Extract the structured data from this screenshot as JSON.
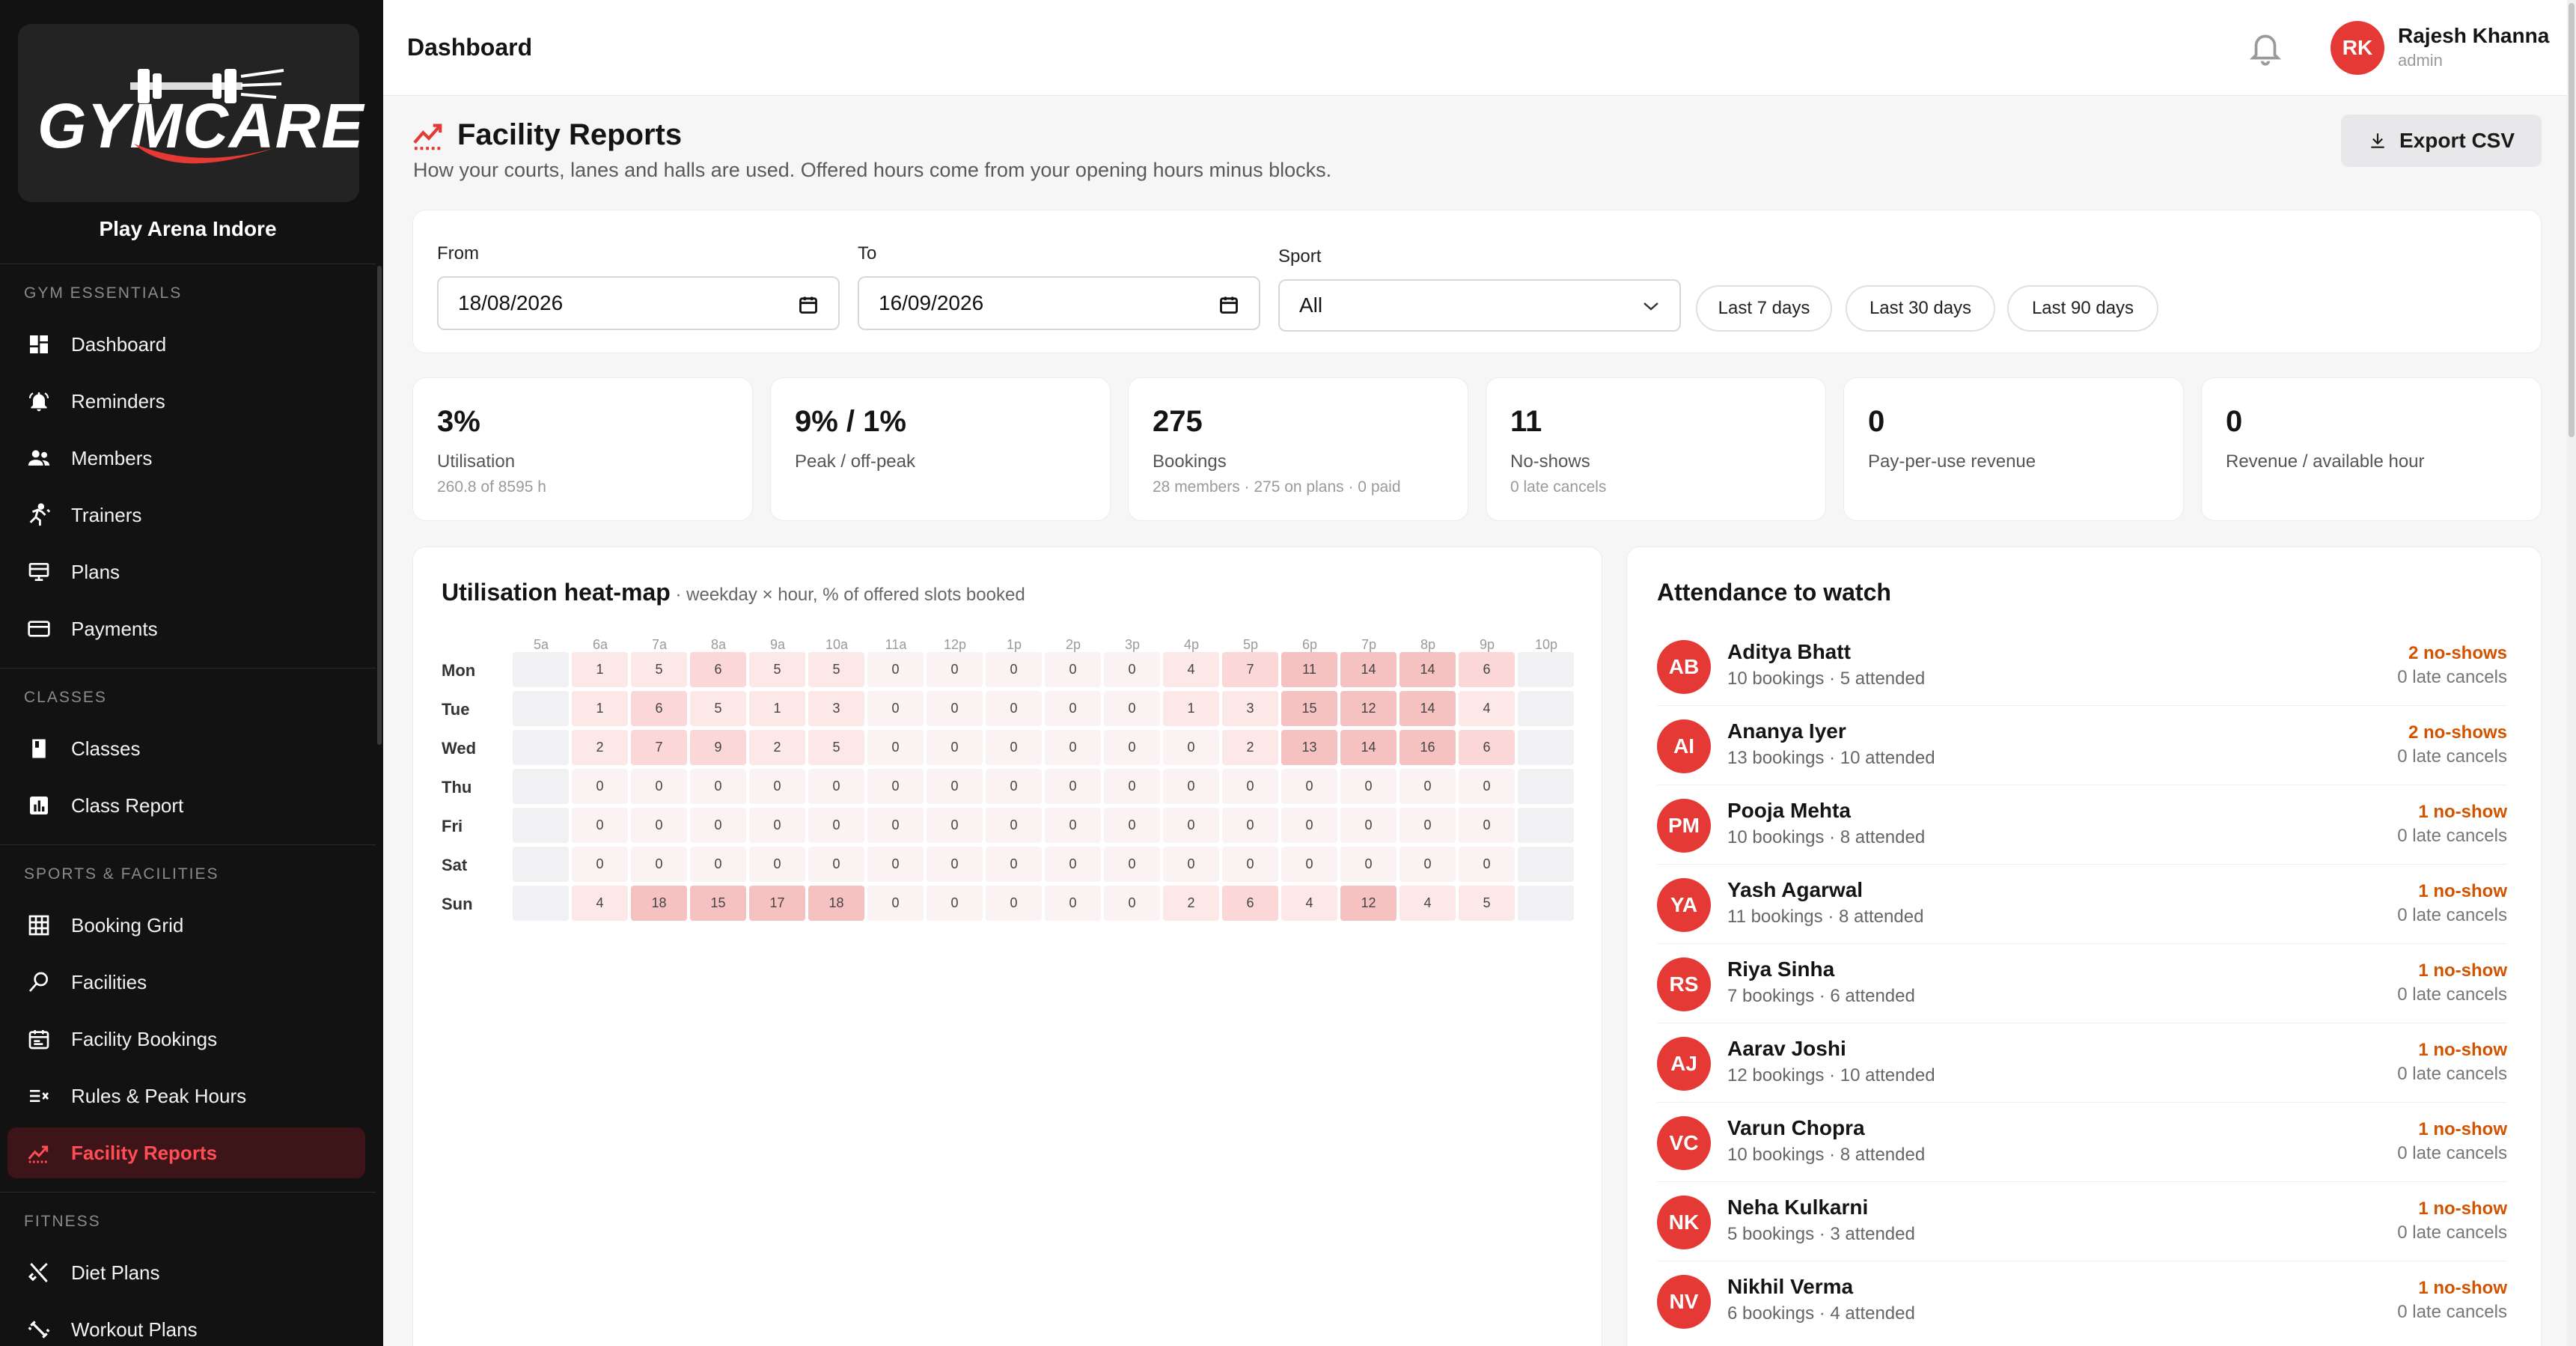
{
  "brand": {
    "logo_text": "GYMCARE",
    "org_name": "Play Arena Indore"
  },
  "sidebar": {
    "sections": [
      {
        "title": "GYM ESSENTIALS",
        "items": [
          {
            "label": "Dashboard",
            "icon": "dashboard-icon"
          },
          {
            "label": "Reminders",
            "icon": "bell-ring-icon"
          },
          {
            "label": "Members",
            "icon": "members-icon"
          },
          {
            "label": "Trainers",
            "icon": "trainer-icon"
          },
          {
            "label": "Plans",
            "icon": "plans-icon"
          },
          {
            "label": "Payments",
            "icon": "card-icon"
          }
        ]
      },
      {
        "title": "CLASSES",
        "items": [
          {
            "label": "Classes",
            "icon": "book-icon"
          },
          {
            "label": "Class Report",
            "icon": "bar-chart-icon"
          }
        ]
      },
      {
        "title": "SPORTS & FACILITIES",
        "items": [
          {
            "label": "Booking Grid",
            "icon": "grid-icon"
          },
          {
            "label": "Facilities",
            "icon": "facility-icon"
          },
          {
            "label": "Facility Bookings",
            "icon": "calendar-icon"
          },
          {
            "label": "Rules & Peak Hours",
            "icon": "rules-icon"
          },
          {
            "label": "Facility Reports",
            "icon": "trend-icon",
            "active": true
          }
        ]
      },
      {
        "title": "FITNESS",
        "items": [
          {
            "label": "Diet Plans",
            "icon": "fork-knife-icon"
          },
          {
            "label": "Workout Plans",
            "icon": "dumbbell-icon"
          }
        ]
      }
    ]
  },
  "topbar": {
    "title": "Dashboard",
    "user": {
      "initials": "RK",
      "name": "Rajesh Khanna",
      "role": "admin"
    }
  },
  "page": {
    "title": "Facility Reports",
    "subtitle": "How your courts, lanes and halls are used. Offered hours come from your opening hours minus blocks.",
    "export_label": "Export CSV"
  },
  "filters": {
    "from_label": "From",
    "from_value": "18/08/2026",
    "to_label": "To",
    "to_value": "16/09/2026",
    "sport_label": "Sport",
    "sport_value": "All",
    "chips": [
      "Last 7 days",
      "Last 30 days",
      "Last 90 days"
    ]
  },
  "kpis": [
    {
      "value": "3%",
      "label": "Utilisation",
      "sub": "260.8 of 8595 h"
    },
    {
      "value": "9% / 1%",
      "label": "Peak / off-peak",
      "sub": ""
    },
    {
      "value": "275",
      "label": "Bookings",
      "sub": "28 members · 275 on plans · 0 paid"
    },
    {
      "value": "11",
      "label": "No-shows",
      "sub": "0 late cancels"
    },
    {
      "value": "0",
      "label": "Pay-per-use revenue",
      "sub": ""
    },
    {
      "value": "0",
      "label": "Revenue / available hour",
      "sub": ""
    }
  ],
  "heatmap": {
    "title": "Utilisation heat-map",
    "subtitle": " · weekday × hour, % of offered slots booked",
    "hours": [
      "5a",
      "6a",
      "7a",
      "8a",
      "9a",
      "10a",
      "11a",
      "12p",
      "1p",
      "2p",
      "3p",
      "4p",
      "5p",
      "6p",
      "7p",
      "8p",
      "9p",
      "10p"
    ],
    "days": [
      "Mon",
      "Tue",
      "Wed",
      "Thu",
      "Fri",
      "Sat",
      "Sun"
    ],
    "values": [
      [
        null,
        1,
        5,
        6,
        5,
        5,
        0,
        0,
        0,
        0,
        0,
        4,
        7,
        11,
        14,
        14,
        6,
        null
      ],
      [
        null,
        1,
        6,
        5,
        1,
        3,
        0,
        0,
        0,
        0,
        0,
        1,
        3,
        15,
        12,
        14,
        4,
        null
      ],
      [
        null,
        2,
        7,
        9,
        2,
        5,
        0,
        0,
        0,
        0,
        0,
        0,
        2,
        13,
        14,
        16,
        6,
        null
      ],
      [
        null,
        0,
        0,
        0,
        0,
        0,
        0,
        0,
        0,
        0,
        0,
        0,
        0,
        0,
        0,
        0,
        0,
        null
      ],
      [
        null,
        0,
        0,
        0,
        0,
        0,
        0,
        0,
        0,
        0,
        0,
        0,
        0,
        0,
        0,
        0,
        0,
        null
      ],
      [
        null,
        0,
        0,
        0,
        0,
        0,
        0,
        0,
        0,
        0,
        0,
        0,
        0,
        0,
        0,
        0,
        0,
        null
      ],
      [
        null,
        4,
        18,
        15,
        17,
        18,
        0,
        0,
        0,
        0,
        0,
        2,
        6,
        4,
        12,
        4,
        5,
        null
      ]
    ],
    "colors": {
      "empty": "#f1f1f3",
      "zero": "#fbf3f3",
      "low": "#fde8e8",
      "mid": "#fbd7d7",
      "high": "#f5c1c1"
    }
  },
  "attendance": {
    "title": "Attendance to watch",
    "people": [
      {
        "initials": "AB",
        "name": "Aditya Bhatt",
        "stats": "10 bookings · 5 attended",
        "noshow": "2 no-shows",
        "late": "0 late cancels"
      },
      {
        "initials": "AI",
        "name": "Ananya Iyer",
        "stats": "13 bookings · 10 attended",
        "noshow": "2 no-shows",
        "late": "0 late cancels"
      },
      {
        "initials": "PM",
        "name": "Pooja Mehta",
        "stats": "10 bookings · 8 attended",
        "noshow": "1 no-show",
        "late": "0 late cancels"
      },
      {
        "initials": "YA",
        "name": "Yash Agarwal",
        "stats": "11 bookings · 8 attended",
        "noshow": "1 no-show",
        "late": "0 late cancels"
      },
      {
        "initials": "RS",
        "name": "Riya Sinha",
        "stats": "7 bookings · 6 attended",
        "noshow": "1 no-show",
        "late": "0 late cancels"
      },
      {
        "initials": "AJ",
        "name": "Aarav Joshi",
        "stats": "12 bookings · 10 attended",
        "noshow": "1 no-show",
        "late": "0 late cancels"
      },
      {
        "initials": "VC",
        "name": "Varun Chopra",
        "stats": "10 bookings · 8 attended",
        "noshow": "1 no-show",
        "late": "0 late cancels"
      },
      {
        "initials": "NK",
        "name": "Neha Kulkarni",
        "stats": "5 bookings · 3 attended",
        "noshow": "1 no-show",
        "late": "0 late cancels"
      },
      {
        "initials": "NV",
        "name": "Nikhil Verma",
        "stats": "6 bookings · 4 attended",
        "noshow": "1 no-show",
        "late": "0 late cancels"
      }
    ]
  }
}
